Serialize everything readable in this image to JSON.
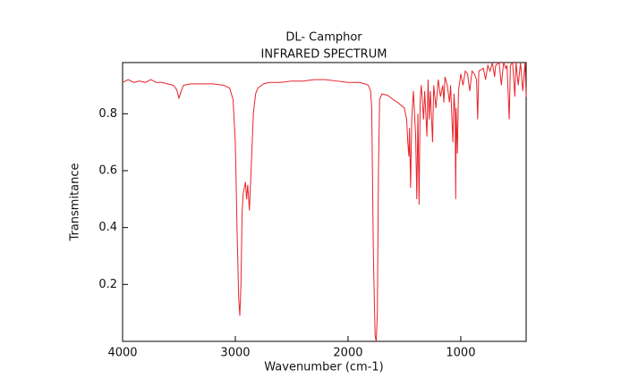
{
  "chart_data": {
    "type": "line",
    "title": "DL- Camphor",
    "subtitle": "INFRARED SPECTRUM",
    "x_label": "Wavenumber (cm-1)",
    "y_label": "Transmitance",
    "xlim": [
      4000,
      420
    ],
    "xticks": [
      4000,
      3000,
      2000,
      1000
    ],
    "ylim": [
      0,
      0.98
    ],
    "yticks": [
      0.2,
      0.4,
      0.6,
      0.8
    ],
    "series": [
      {
        "color": "#e8242a",
        "x": [
          4000,
          3950,
          3900,
          3850,
          3800,
          3750,
          3700,
          3650,
          3600,
          3550,
          3520,
          3500,
          3480,
          3460,
          3400,
          3300,
          3200,
          3100,
          3050,
          3020,
          3000,
          2985,
          2970,
          2960,
          2950,
          2940,
          2930,
          2910,
          2900,
          2890,
          2875,
          2860,
          2840,
          2820,
          2800,
          2750,
          2700,
          2600,
          2500,
          2400,
          2300,
          2200,
          2100,
          2000,
          1900,
          1850,
          1820,
          1800,
          1790,
          1775,
          1760,
          1750,
          1740,
          1730,
          1720,
          1700,
          1650,
          1600,
          1560,
          1500,
          1480,
          1470,
          1460,
          1455,
          1445,
          1435,
          1420,
          1400,
          1390,
          1380,
          1370,
          1360,
          1350,
          1330,
          1320,
          1300,
          1290,
          1280,
          1270,
          1250,
          1240,
          1220,
          1200,
          1180,
          1160,
          1150,
          1140,
          1120,
          1100,
          1090,
          1070,
          1060,
          1050,
          1045,
          1040,
          1030,
          1020,
          1000,
          980,
          960,
          940,
          920,
          900,
          880,
          860,
          850,
          840,
          800,
          780,
          760,
          740,
          720,
          700,
          690,
          660,
          640,
          620,
          600,
          590,
          570,
          560,
          540,
          520,
          510,
          490,
          470,
          450,
          430,
          420
        ],
        "values": [
          0.91,
          0.92,
          0.91,
          0.915,
          0.91,
          0.92,
          0.91,
          0.91,
          0.905,
          0.9,
          0.885,
          0.855,
          0.88,
          0.9,
          0.905,
          0.905,
          0.905,
          0.9,
          0.89,
          0.85,
          0.7,
          0.4,
          0.15,
          0.09,
          0.2,
          0.45,
          0.52,
          0.56,
          0.5,
          0.55,
          0.46,
          0.6,
          0.8,
          0.87,
          0.89,
          0.905,
          0.91,
          0.91,
          0.915,
          0.915,
          0.92,
          0.92,
          0.915,
          0.91,
          0.91,
          0.905,
          0.9,
          0.88,
          0.82,
          0.3,
          0.02,
          0.0,
          0.1,
          0.6,
          0.85,
          0.87,
          0.865,
          0.85,
          0.84,
          0.82,
          0.78,
          0.7,
          0.65,
          0.75,
          0.54,
          0.78,
          0.88,
          0.72,
          0.5,
          0.8,
          0.48,
          0.85,
          0.9,
          0.78,
          0.88,
          0.72,
          0.92,
          0.78,
          0.88,
          0.7,
          0.9,
          0.82,
          0.92,
          0.86,
          0.9,
          0.84,
          0.93,
          0.9,
          0.84,
          0.9,
          0.7,
          0.87,
          0.8,
          0.5,
          0.82,
          0.66,
          0.88,
          0.94,
          0.9,
          0.95,
          0.94,
          0.88,
          0.95,
          0.94,
          0.92,
          0.78,
          0.95,
          0.96,
          0.92,
          0.97,
          0.95,
          0.98,
          0.93,
          0.97,
          0.98,
          0.9,
          0.98,
          0.96,
          0.97,
          0.78,
          0.97,
          0.98,
          0.86,
          0.98,
          0.9,
          0.98,
          0.88,
          0.98,
          0.86
        ]
      }
    ]
  }
}
